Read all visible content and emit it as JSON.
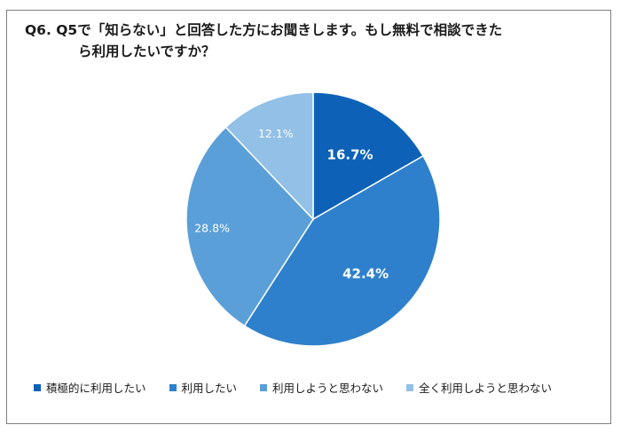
{
  "title": {
    "line1": "Q6.  Q5で「知らない」と回答した方にお聞きします。もし無料で相談できた",
    "line2": "ら利用したいですか？"
  },
  "chart_data": {
    "type": "pie",
    "title": "Q6.  Q5で「知らない」と回答した方にお聞きします。もし無料で相談できたら利用したいですか？",
    "categories": [
      "積極的に利用したい",
      "利用したい",
      "利用しようと思わない",
      "全く利用しようと思わない"
    ],
    "values": [
      16.7,
      42.4,
      28.8,
      12.1
    ],
    "labels": [
      "16.7%",
      "42.4%",
      "28.8%",
      "12.1%"
    ],
    "colors": [
      "#0d62b8",
      "#2e80cc",
      "#5b9fd8",
      "#92c0e6"
    ],
    "label_colors": [
      "#ffffff",
      "#ffffff",
      "#ffffff",
      "#ffffff"
    ],
    "label_bold": [
      true,
      true,
      false,
      false
    ],
    "start_angle": "12 o'clock",
    "direction": "clockwise",
    "legend_position": "bottom"
  }
}
